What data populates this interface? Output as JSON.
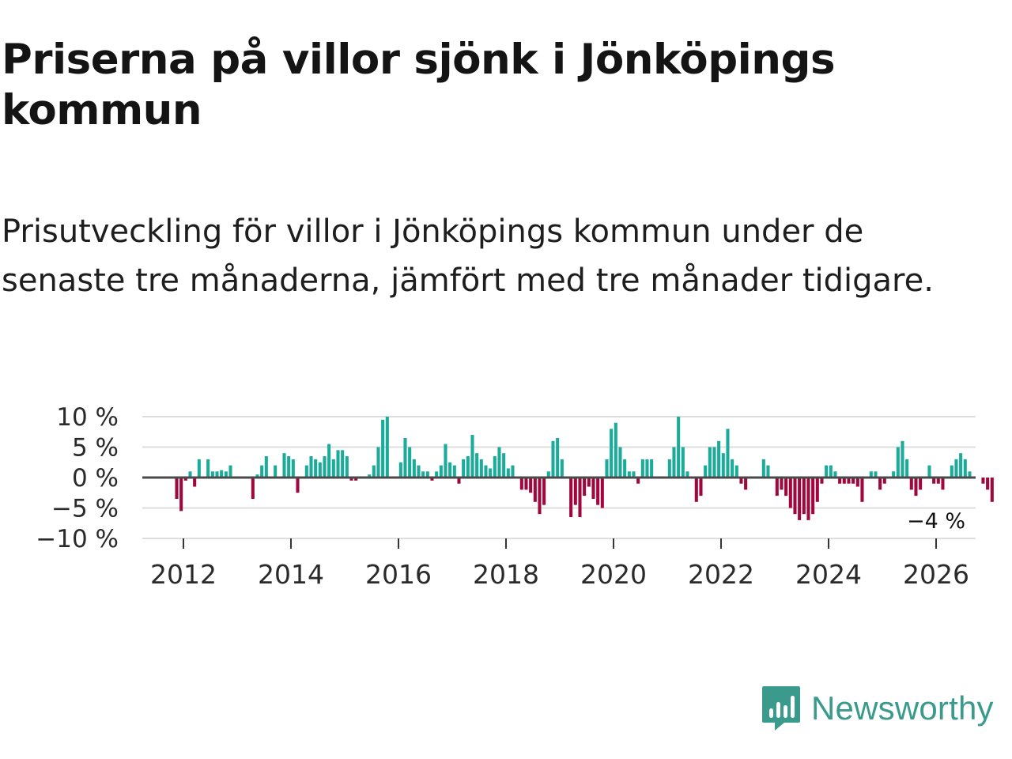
{
  "title": "Priserna på villor sjönk i Jönköpings kommun",
  "subtitle": "Prisutveckling för villor i Jönköpings kommun under de senaste tre månaderna, jämfört med tre månader tidigare.",
  "brand": {
    "name": "Newsworthy",
    "icon": "newsworthy-logo-icon"
  },
  "colors": {
    "positive": "#1aab9b",
    "negative": "#a0073e",
    "zero_line": "#4a4a4a",
    "grid": "#dddddd",
    "brand": "#3a9a8c"
  },
  "chart_data": {
    "type": "bar",
    "unit": "%",
    "ylim": [
      -10,
      10
    ],
    "yticks": [
      10,
      5,
      0,
      -5,
      -10
    ],
    "ytick_labels": [
      "10 %",
      "5 %",
      "0 %",
      "−5 %",
      "−10 %"
    ],
    "x_start": 2011.875,
    "x_step": 0.08333,
    "xticks": [
      2012,
      2014,
      2016,
      2018,
      2020,
      2022,
      2024,
      2026
    ],
    "xtick_labels": [
      "2012",
      "2014",
      "2016",
      "2018",
      "2020",
      "2022",
      "2024",
      "2026"
    ],
    "values": [
      -3.5,
      -5.5,
      -0.5,
      1,
      -1.5,
      3,
      0,
      3,
      1,
      1,
      1.2,
      1,
      2,
      0,
      0,
      0,
      0,
      -3.5,
      0.5,
      2,
      3.5,
      0,
      2,
      0,
      4,
      3.5,
      3,
      -2.5,
      0,
      2,
      3.5,
      3,
      2.5,
      3.5,
      5.5,
      3,
      4.5,
      4.5,
      3.5,
      -0.5,
      -0.5,
      0,
      0,
      0.5,
      2,
      5,
      9.5,
      10,
      0,
      0,
      2.5,
      6.5,
      5,
      3,
      2,
      1,
      1,
      -0.5,
      1,
      2,
      5.5,
      2.5,
      2,
      -1,
      3,
      3.5,
      7,
      4,
      3,
      2,
      1.5,
      3.5,
      5,
      4,
      1.5,
      2,
      0,
      -2,
      -2,
      -2.5,
      -4,
      -6,
      -4.5,
      1,
      6,
      6.5,
      3,
      0,
      -6.5,
      -4.5,
      -6.5,
      -3,
      -1.5,
      -3.5,
      -4.5,
      -5,
      3,
      8,
      9,
      5,
      3,
      1,
      1,
      -1,
      3,
      3,
      3,
      0,
      0,
      0,
      3,
      5,
      10,
      5,
      1,
      0,
      -4,
      -3,
      2,
      5,
      5,
      6,
      4,
      8,
      3,
      2,
      -1,
      -2,
      0,
      0,
      0,
      3,
      2,
      0,
      -3,
      -2,
      -3,
      -5,
      -6,
      -7,
      -6,
      -7,
      -6,
      -4,
      -1,
      2,
      2,
      1,
      -1,
      -1,
      -1,
      -1,
      -1.5,
      -4,
      0,
      1,
      1,
      -2,
      -1,
      0,
      1,
      5,
      6,
      3,
      -2,
      -3,
      -2,
      0,
      2,
      -1,
      -1,
      -2,
      0,
      2,
      3,
      4,
      3,
      1,
      0,
      0,
      -1,
      -2,
      -4
    ],
    "last_value_label": "−4 %"
  }
}
